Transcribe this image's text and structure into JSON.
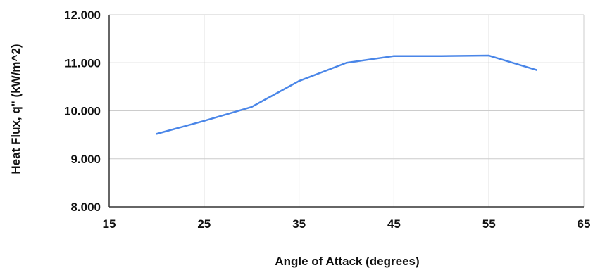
{
  "chart_data": {
    "type": "line",
    "title": "",
    "xlabel": "Angle of Attack (degrees)",
    "ylabel": "Heat Flux, q\" (kW/m^2)",
    "xlim": [
      15,
      65
    ],
    "ylim": [
      8,
      12
    ],
    "xticks": [
      15,
      25,
      35,
      45,
      55,
      65
    ],
    "xtick_labels": [
      "15",
      "25",
      "35",
      "45",
      "55",
      "65"
    ],
    "yticks": [
      8,
      9,
      10,
      11,
      12
    ],
    "ytick_labels": [
      "8.000",
      "9.000",
      "10.000",
      "11.000",
      "12.000"
    ],
    "grid": true,
    "legend": "none",
    "series": [
      {
        "color": "#4a86e8",
        "x": [
          20,
          25,
          30,
          35,
          40,
          45,
          50,
          55,
          60
        ],
        "y": [
          9.52,
          9.79,
          10.08,
          10.62,
          11.0,
          11.14,
          11.14,
          11.15,
          10.85
        ]
      }
    ]
  }
}
